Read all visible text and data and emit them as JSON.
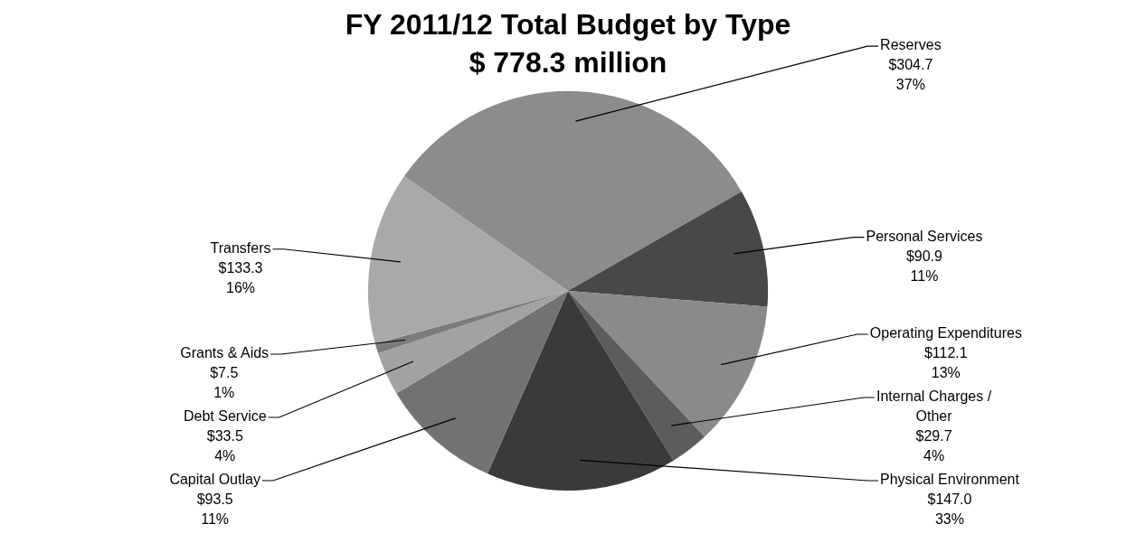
{
  "chart_data": {
    "type": "pie",
    "title": "FY 2011/12 Total Budget by Type",
    "subtitle": "$ 778.3 million",
    "categories": [
      "Reserves",
      "Personal Services",
      "Operating Expenditures",
      "Internal Charges / Other",
      "Physical Environment",
      "Capital Outlay",
      "Debt Service",
      "Grants & Aids",
      "Transfers"
    ],
    "values": [
      304.7,
      90.9,
      112.1,
      29.7,
      147.0,
      93.5,
      33.5,
      7.5,
      133.3
    ],
    "value_labels": [
      "$304.7\n37%",
      "$90.9\n11%",
      "$112.1\n13%",
      "$29.7\n4%",
      "$147.0\n33%",
      "$93.5\n11%",
      "$33.5\n4%",
      "$7.5\n1%",
      "$133.3\n16%"
    ],
    "colors": [
      "#8c8c8c",
      "#484848",
      "#8a8a8a",
      "#5c5c5c",
      "#3a3a3a",
      "#727272",
      "#a2a2a2",
      "#7c7c7c",
      "#a9a9a9"
    ],
    "legend": false
  }
}
